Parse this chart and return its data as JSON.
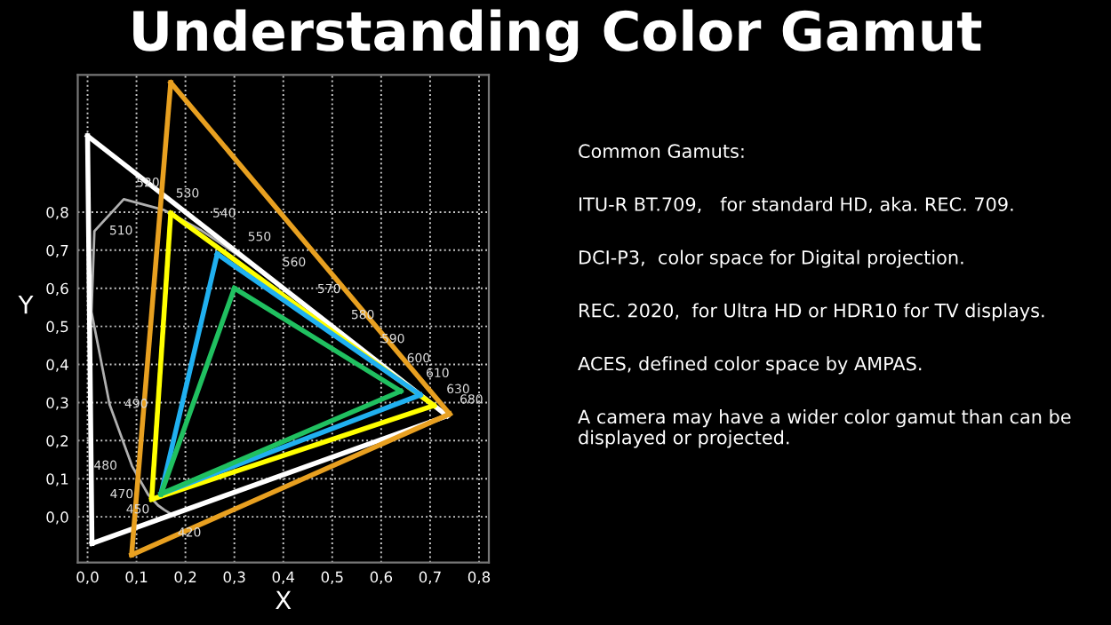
{
  "chart_data": {
    "type": "line",
    "title": "Understanding Color Gamut",
    "xlabel": "X",
    "ylabel": "Y",
    "xlim": [
      -0.02,
      0.82
    ],
    "ylim": [
      -0.12,
      1.16
    ],
    "xticks": [
      {
        "value": 0,
        "label": "0,0"
      },
      {
        "value": 0.1,
        "label": "0,1"
      },
      {
        "value": 0.2,
        "label": "0,2"
      },
      {
        "value": 0.3,
        "label": "0,3"
      },
      {
        "value": 0.4,
        "label": "0,4"
      },
      {
        "value": 0.5,
        "label": "0,5"
      },
      {
        "value": 0.6,
        "label": "0,6"
      },
      {
        "value": 0.7,
        "label": "0,7"
      },
      {
        "value": 0.8,
        "label": "0,8"
      }
    ],
    "yticks": [
      {
        "value": 0,
        "label": "0,0"
      },
      {
        "value": 0.1,
        "label": "0,1"
      },
      {
        "value": 0.2,
        "label": "0,2"
      },
      {
        "value": 0.3,
        "label": "0,3"
      },
      {
        "value": 0.4,
        "label": "0,4"
      },
      {
        "value": 0.5,
        "label": "0,5"
      },
      {
        "value": 0.6,
        "label": "0,6"
      },
      {
        "value": 0.7,
        "label": "0,7"
      },
      {
        "value": 0.8,
        "label": "0,8"
      }
    ],
    "grid": true,
    "marker": "none",
    "legend": false,
    "series": [
      {
        "color": "#b0b0b0",
        "x": [
          0.174,
          0.157,
          0.144,
          0.124,
          0.091,
          0.045,
          0.008,
          0.014,
          0.074,
          0.155,
          0.23,
          0.302,
          0.373,
          0.444,
          0.513,
          0.575,
          0.627,
          0.666,
          0.692,
          0.708,
          0.735
        ],
        "values": [
          0.005,
          0.018,
          0.03,
          0.058,
          0.133,
          0.295,
          0.538,
          0.75,
          0.834,
          0.806,
          0.754,
          0.692,
          0.625,
          0.555,
          0.487,
          0.424,
          0.373,
          0.334,
          0.308,
          0.292,
          0.265
        ]
      },
      {
        "color": "#ffffff",
        "x": [
          0.0,
          0.735
        ],
        "values": [
          1.0,
          0.265
        ]
      },
      {
        "color": "#ffffff",
        "x": [
          0.009,
          0.735
        ],
        "values": [
          -0.07,
          0.265
        ]
      },
      {
        "color": "#ffffff",
        "x": [
          0.0,
          0.009
        ],
        "values": [
          1.0,
          -0.07
        ]
      },
      {
        "color": "#e8a020",
        "x": [
          0.17,
          0.74
        ],
        "values": [
          1.14,
          0.27
        ]
      },
      {
        "color": "#e8a020",
        "x": [
          0.09,
          0.74
        ],
        "values": [
          -0.1,
          0.27
        ]
      },
      {
        "color": "#e8a020",
        "x": [
          0.09,
          0.17
        ],
        "values": [
          -0.1,
          1.14
        ]
      },
      {
        "color": "#ffff00",
        "x": [
          0.17,
          0.708
        ],
        "values": [
          0.797,
          0.292
        ]
      },
      {
        "color": "#ffff00",
        "x": [
          0.131,
          0.708
        ],
        "values": [
          0.046,
          0.292
        ]
      },
      {
        "color": "#ffff00",
        "x": [
          0.131,
          0.17
        ],
        "values": [
          0.046,
          0.797
        ]
      },
      {
        "color": "#20b0f0",
        "x": [
          0.265,
          0.68
        ],
        "values": [
          0.69,
          0.32
        ]
      },
      {
        "color": "#20b0f0",
        "x": [
          0.15,
          0.68
        ],
        "values": [
          0.06,
          0.32
        ]
      },
      {
        "color": "#20b0f0",
        "x": [
          0.15,
          0.265
        ],
        "values": [
          0.06,
          0.69
        ]
      },
      {
        "color": "#20c060",
        "x": [
          0.3,
          0.64
        ],
        "values": [
          0.6,
          0.33
        ]
      },
      {
        "color": "#20c060",
        "x": [
          0.15,
          0.64
        ],
        "values": [
          0.06,
          0.33
        ]
      },
      {
        "color": "#20c060",
        "x": [
          0.15,
          0.3
        ],
        "values": [
          0.06,
          0.6
        ]
      }
    ],
    "annotations": [
      {
        "text": "520",
        "x": 0.074,
        "y": 0.834
      },
      {
        "text": "530",
        "x": 0.155,
        "y": 0.806
      },
      {
        "text": "540",
        "x": 0.23,
        "y": 0.754
      },
      {
        "text": "550",
        "x": 0.302,
        "y": 0.692
      },
      {
        "text": "560",
        "x": 0.373,
        "y": 0.625
      },
      {
        "text": "570",
        "x": 0.444,
        "y": 0.555
      },
      {
        "text": "580",
        "x": 0.513,
        "y": 0.487
      },
      {
        "text": "590",
        "x": 0.575,
        "y": 0.424
      },
      {
        "text": "600",
        "x": 0.627,
        "y": 0.373
      },
      {
        "text": "610",
        "x": 0.666,
        "y": 0.334
      },
      {
        "text": "630",
        "x": 0.708,
        "y": 0.292
      },
      {
        "text": "680",
        "x": 0.735,
        "y": 0.265
      },
      {
        "text": "510",
        "x": 0.014,
        "y": 0.75
      },
      {
        "text": "490",
        "x": 0.045,
        "y": 0.295
      },
      {
        "text": "480",
        "x": 0.091,
        "y": 0.133
      },
      {
        "text": "470",
        "x": 0.124,
        "y": 0.058
      },
      {
        "text": "450",
        "x": 0.157,
        "y": 0.018
      },
      {
        "text": "420",
        "x": 0.174,
        "y": 0.005
      },
      "Common Gamuts:",
      "ITU-R BT.709,   for standard HD, aka. REC. 709.",
      "DCI-P3,  color space for Digital projection.",
      "REC. 2020,  for Ultra HD or HDR10 for TV displays.",
      "ACES, defined color space by AMPAS.",
      "A camera may have a wider color gamut than can be displayed or projected."
    ]
  }
}
